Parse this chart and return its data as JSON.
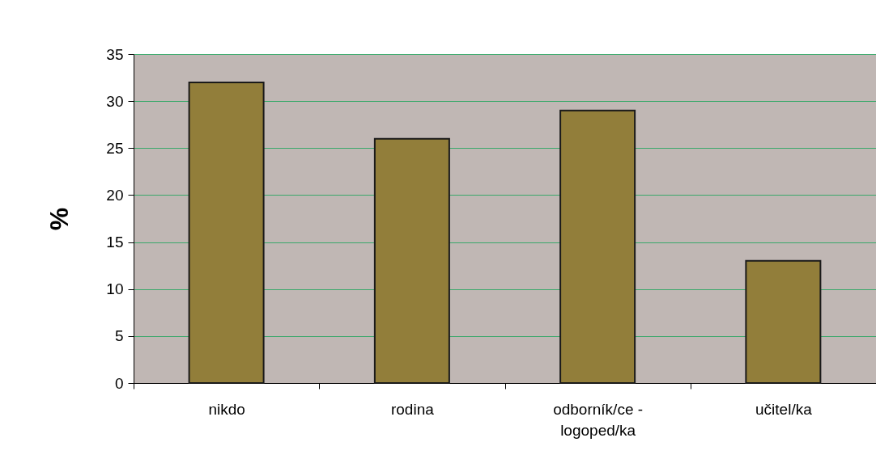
{
  "chart_data": {
    "type": "bar",
    "ylabel": "%",
    "categories": [
      "nikdo",
      "rodina",
      "odborník/ce - logoped/ka",
      "učitel/ka"
    ],
    "values": [
      32,
      26,
      29,
      13
    ],
    "color": "#927e3a",
    "ylim": [
      0,
      35
    ],
    "yticks": [
      0,
      5,
      10,
      15,
      20,
      25,
      30,
      35
    ],
    "grid": "y"
  }
}
